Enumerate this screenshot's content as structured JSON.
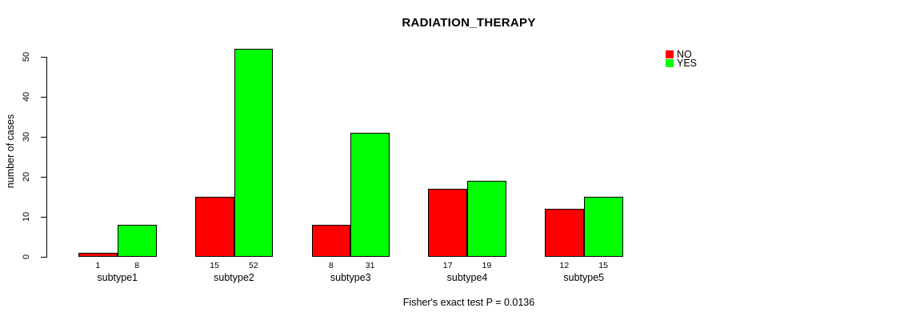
{
  "chart_data": {
    "type": "bar",
    "title": "RADIATION_THERAPY",
    "xlabel": "",
    "ylabel": "number of cases",
    "categories": [
      "subtype1",
      "subtype2",
      "subtype3",
      "subtype4",
      "subtype5"
    ],
    "series": [
      {
        "name": "NO",
        "color": "#FF0000",
        "values": [
          1,
          15,
          8,
          17,
          12
        ]
      },
      {
        "name": "YES",
        "color": "#00FF00",
        "values": [
          8,
          52,
          31,
          19,
          15
        ]
      }
    ],
    "ylim": [
      0,
      50
    ],
    "yticks": [
      0,
      10,
      20,
      30,
      40,
      50
    ],
    "grid": false,
    "bar_value_labels_shown": true,
    "legend": {
      "position": "top-right",
      "entries": [
        {
          "label": "NO",
          "color": "#FF0000"
        },
        {
          "label": "YES",
          "color": "#00FF00"
        }
      ]
    },
    "caption": "Fisher's exact test P = 0.0136"
  },
  "colors": {
    "bar_no": "#FF0000",
    "bar_yes": "#00FF00",
    "axis": "#000000",
    "background": "#FFFFFF"
  }
}
